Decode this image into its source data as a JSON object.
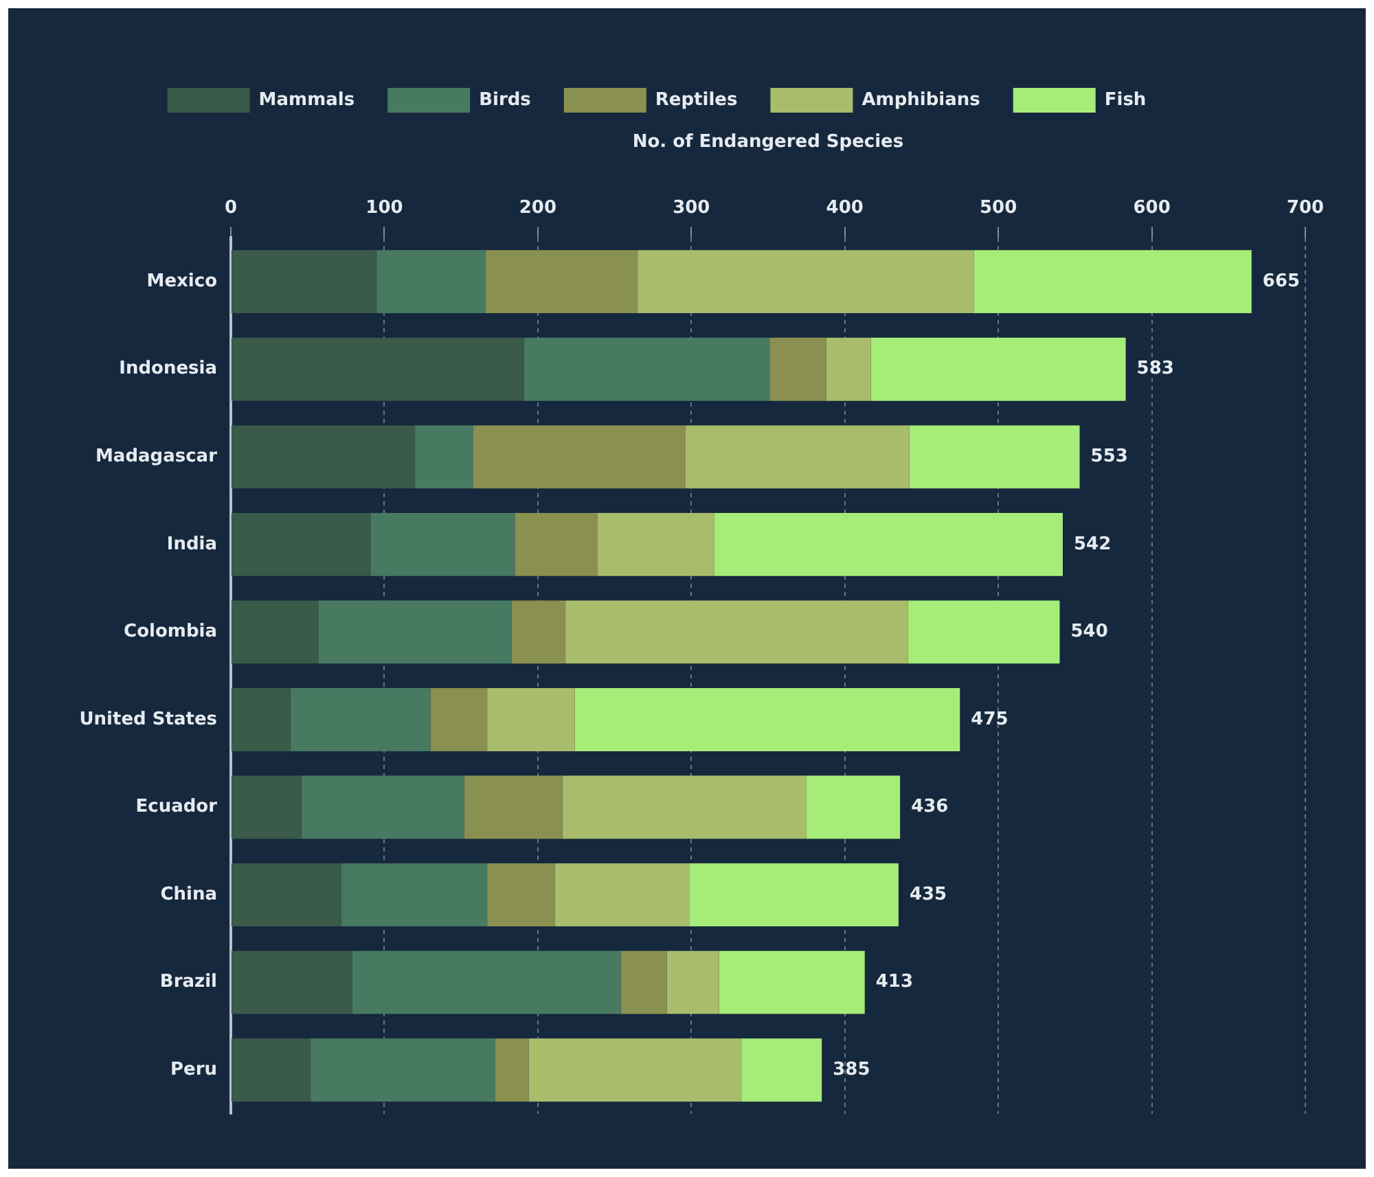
{
  "chart_data": {
    "type": "bar",
    "orientation": "horizontal",
    "stacked": true,
    "xlabel": "No. of Endangered Species",
    "categories": [
      "Mexico",
      "Indonesia",
      "Madagascar",
      "India",
      "Colombia",
      "United States",
      "Ecuador",
      "China",
      "Brazil",
      "Peru"
    ],
    "series": [
      {
        "name": "Mammals",
        "color": "#3a5a4a",
        "values": [
          95,
          191,
          120,
          91,
          57,
          39,
          46,
          72,
          79,
          52
        ]
      },
      {
        "name": "Birds",
        "color": "#487a62",
        "values": [
          71,
          160,
          38,
          94,
          126,
          91,
          106,
          95,
          175,
          120
        ]
      },
      {
        "name": "Reptiles",
        "color": "#8a9050",
        "values": [
          99,
          37,
          138,
          54,
          35,
          37,
          64,
          44,
          30,
          22
        ]
      },
      {
        "name": "Amphibians",
        "color": "#a8bc6c",
        "values": [
          219,
          29,
          146,
          76,
          223,
          57,
          159,
          88,
          34,
          139
        ]
      },
      {
        "name": "Fish",
        "color": "#a6ec78",
        "values": [
          181,
          166,
          111,
          227,
          99,
          251,
          61,
          136,
          95,
          52
        ]
      }
    ],
    "totals": [
      "665",
      "583",
      "553",
      "542",
      "540",
      "475",
      "436",
      "435",
      "413",
      "385"
    ],
    "xlim": [
      0,
      700
    ],
    "xticks": [
      0,
      100,
      200,
      300,
      400,
      500,
      600,
      700
    ],
    "grid": "x",
    "legend": "top"
  }
}
